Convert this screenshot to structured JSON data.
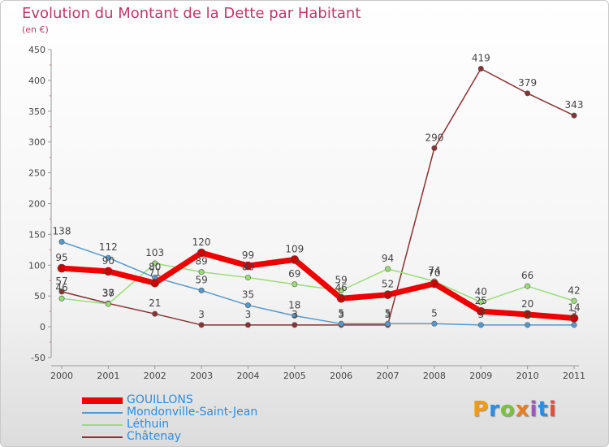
{
  "title": "Evolution du Montant de la Dette par Habitant",
  "subtitle": "(en €)",
  "logo": [
    "P",
    "r",
    "o",
    "x",
    "i",
    "t",
    "i"
  ],
  "logo_colors": [
    "#f39c12",
    "#2b8de0",
    "#7cc242",
    "#e67e22",
    "#9b59b6",
    "#2b8de0",
    "#e74c3c"
  ],
  "chart_data": {
    "type": "line",
    "x": [
      "2000",
      "2001",
      "2002",
      "2003",
      "2004",
      "2005",
      "2006",
      "2007",
      "2008",
      "2009",
      "2010",
      "2011"
    ],
    "ylim": [
      -50,
      450
    ],
    "yticks": [
      "-50",
      "0",
      "50",
      "100",
      "150",
      "200",
      "250",
      "300",
      "350",
      "400",
      "450"
    ],
    "grid": false,
    "legend_position": "bottom-left",
    "series": [
      {
        "name": "GOUILLONS",
        "color": "#ee0000",
        "width": 7,
        "values": [
          95,
          90,
          71,
          120,
          99,
          109,
          46,
          52,
          70,
          25,
          20,
          14
        ],
        "labels": [
          "95",
          "90",
          "71",
          "120",
          "99",
          "109",
          "46",
          "52",
          "70",
          "25",
          "20",
          "14"
        ]
      },
      {
        "name": "Mondonville-Saint-Jean",
        "color": "#5599cc",
        "width": 1.5,
        "values": [
          138,
          112,
          80,
          59,
          35,
          18,
          5,
          5,
          5,
          3,
          3,
          3
        ],
        "labels": [
          "138",
          "112",
          "80",
          "59",
          "35",
          "18",
          "5",
          "5",
          "5",
          "3",
          "3",
          "3"
        ]
      },
      {
        "name": "Léthuin",
        "color": "#99dd77",
        "width": 1.5,
        "values": [
          46,
          37,
          103,
          89,
          80,
          69,
          59,
          94,
          74,
          40,
          66,
          42
        ],
        "labels": [
          "46",
          "37",
          "103",
          "89",
          "80",
          "69",
          "59",
          "94",
          "74",
          "40",
          "66",
          "42"
        ]
      },
      {
        "name": "Châtenay",
        "color": "#883333",
        "width": 1.5,
        "values": [
          57,
          38,
          21,
          3,
          3,
          3,
          3,
          3,
          290,
          419,
          379,
          343
        ],
        "labels": [
          "57",
          "38",
          "21",
          "3",
          "3",
          "3",
          "3",
          "3",
          "290",
          "419",
          "379",
          "343"
        ]
      }
    ]
  }
}
